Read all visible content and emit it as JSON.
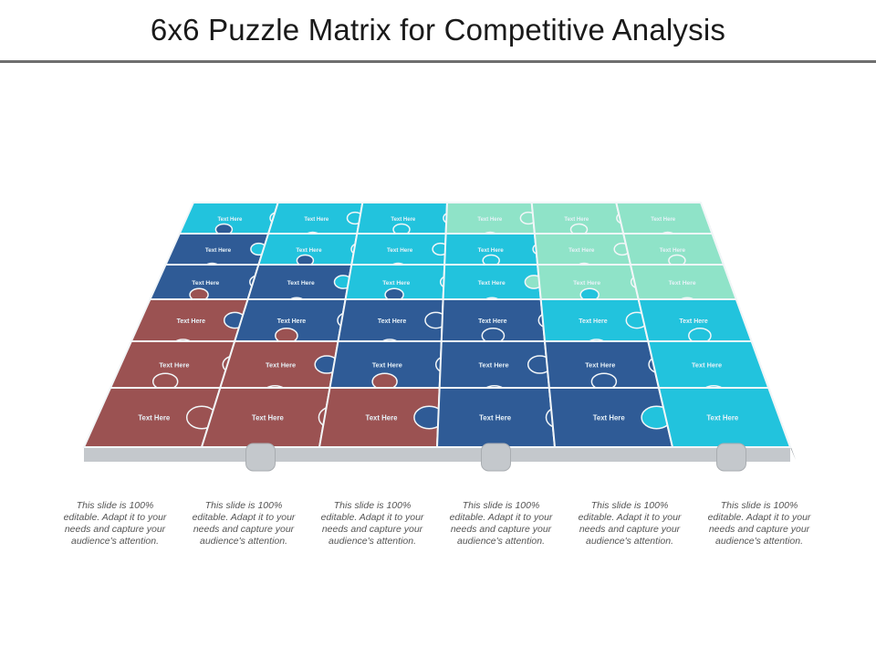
{
  "slide": {
    "title": "6x6 Puzzle Matrix for Competitive Analysis"
  },
  "puzzle": {
    "rows": 6,
    "cols": 6,
    "piece_label": "Text Here",
    "colors": {
      "red": "#9b5252",
      "navy": "#2f5b96",
      "cyan": "#22c3dd",
      "mint": "#8fe3c8",
      "edge_grey": "#c4c8cc",
      "edge_dark": "#8f969d",
      "seam": "#f2f6f8"
    },
    "grid": [
      [
        "cyan",
        "cyan",
        "cyan",
        "mint",
        "mint",
        "mint"
      ],
      [
        "navy",
        "cyan",
        "cyan",
        "cyan",
        "mint",
        "mint"
      ],
      [
        "navy",
        "navy",
        "cyan",
        "cyan",
        "mint",
        "mint"
      ],
      [
        "red",
        "navy",
        "navy",
        "navy",
        "cyan",
        "cyan"
      ],
      [
        "red",
        "red",
        "navy",
        "navy",
        "navy",
        "cyan"
      ],
      [
        "red",
        "red",
        "red",
        "navy",
        "navy",
        "cyan"
      ]
    ]
  },
  "captions": [
    "This slide is 100% editable. Adapt it to your needs and capture your audience's attention.",
    "This slide is 100% editable. Adapt it to your needs and capture your audience's attention.",
    "This slide is 100% editable. Adapt it to your needs and capture your audience's attention.",
    "This slide is 100% editable. Adapt it to your needs and capture your audience's attention.",
    "This slide is 100% editable. Adapt it to your needs and capture your audience's attention.",
    "This slide is 100% editable. Adapt it to your needs and capture your audience's attention."
  ]
}
